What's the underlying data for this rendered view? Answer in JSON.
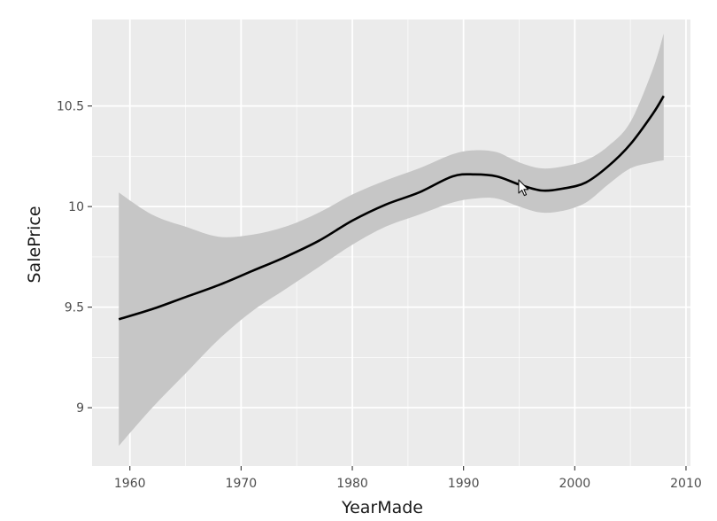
{
  "chart_data": {
    "type": "line",
    "title": "",
    "xlabel": "YearMade",
    "ylabel": "SalePrice",
    "xlim": [
      1956.6,
      2010.4
    ],
    "ylim": [
      8.71,
      10.93
    ],
    "x_ticks": [
      1960,
      1970,
      1980,
      1990,
      2000,
      2010
    ],
    "x_tick_labels": [
      "1960",
      "1970",
      "1980",
      "1990",
      "2000",
      "2010"
    ],
    "y_ticks": [
      9,
      9.5,
      10,
      10.5
    ],
    "y_tick_labels": [
      "9",
      "9.5",
      "10",
      "10.5"
    ],
    "grid": true,
    "series": [
      {
        "type": "line",
        "color": "#000000",
        "x": [
          1959,
          1962,
          1965,
          1968,
          1971,
          1974,
          1977,
          1980,
          1983,
          1986,
          1989,
          1991,
          1993,
          1995,
          1997,
          1999,
          2001,
          2003,
          2005,
          2007,
          2008
        ],
        "y": [
          9.44,
          9.49,
          9.55,
          9.61,
          9.68,
          9.75,
          9.83,
          9.93,
          10.01,
          10.07,
          10.15,
          10.16,
          10.15,
          10.11,
          10.08,
          10.09,
          10.12,
          10.2,
          10.31,
          10.46,
          10.55
        ]
      }
    ],
    "confidence_band": {
      "color": "#c6c6c6",
      "x": [
        1959,
        1962,
        1965,
        1968,
        1971,
        1974,
        1977,
        1980,
        1983,
        1986,
        1989,
        1991,
        1993,
        1995,
        1997,
        1999,
        2001,
        2003,
        2005,
        2007,
        2008
      ],
      "lower": [
        8.81,
        9.0,
        9.17,
        9.34,
        9.48,
        9.59,
        9.7,
        9.81,
        9.9,
        9.96,
        10.02,
        10.04,
        10.04,
        10.0,
        9.97,
        9.98,
        10.02,
        10.11,
        10.19,
        10.22,
        10.23
      ],
      "upper": [
        10.07,
        9.96,
        9.9,
        9.85,
        9.86,
        9.9,
        9.97,
        10.06,
        10.13,
        10.19,
        10.26,
        10.28,
        10.27,
        10.22,
        10.19,
        10.2,
        10.23,
        10.3,
        10.42,
        10.68,
        10.86
      ]
    },
    "panel_background": "#ebebeb",
    "grid_color": "#ffffff"
  }
}
